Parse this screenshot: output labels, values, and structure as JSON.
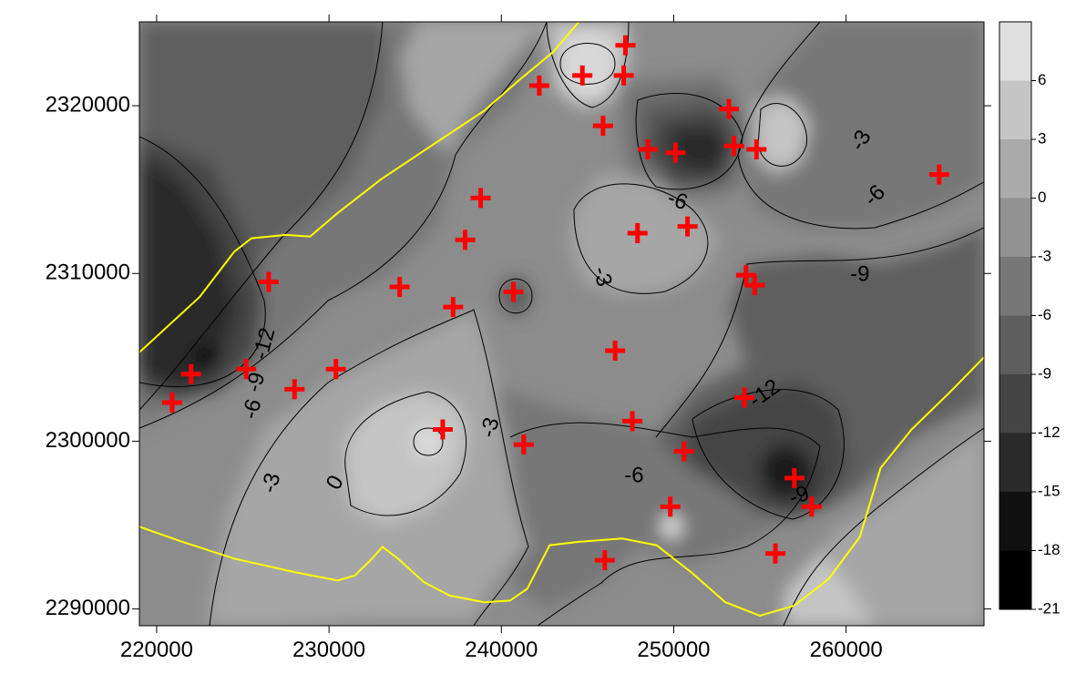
{
  "chart_data": {
    "type": "contour",
    "title": "",
    "xlabel": "",
    "ylabel": "",
    "xlim": [
      219000,
      268000
    ],
    "ylim": [
      2289000,
      2325000
    ],
    "x_ticks": [
      220000,
      230000,
      240000,
      250000,
      260000
    ],
    "y_ticks": [
      2290000,
      2300000,
      2310000,
      2320000
    ],
    "x_tick_labels": [
      "220000",
      "230000",
      "240000",
      "250000",
      "260000"
    ],
    "y_tick_labels": [
      "2290000",
      "2300000",
      "2310000",
      "2320000"
    ],
    "colorbar": {
      "levels": [
        -21,
        -18,
        -15,
        -12,
        -9,
        -6,
        -3,
        0,
        3,
        6,
        9
      ],
      "labels": [
        "-21",
        "-18",
        "-15",
        "-12",
        "-9",
        "-6",
        "-3",
        "0",
        "3",
        "6"
      ],
      "colors": [
        "#000000",
        "#101010",
        "#2a2a2a",
        "#444444",
        "#5e5e5e",
        "#777777",
        "#929292",
        "#aaaaaa",
        "#c5c5c5",
        "#e0e0e0",
        "#ffffff"
      ]
    },
    "contour_labels": [
      {
        "text": "-12",
        "x": 226300,
        "y": 2305800,
        "rot": -75
      },
      {
        "text": "-9",
        "x": 225800,
        "y": 2303500,
        "rot": -75
      },
      {
        "text": "-6",
        "x": 225600,
        "y": 2301900,
        "rot": -75
      },
      {
        "text": "-3",
        "x": 226700,
        "y": 2297500,
        "rot": -75
      },
      {
        "text": "0",
        "x": 230400,
        "y": 2297500,
        "rot": -60
      },
      {
        "text": "-3",
        "x": 239400,
        "y": 2300800,
        "rot": -75
      },
      {
        "text": "-3",
        "x": 245800,
        "y": 2309800,
        "rot": 75
      },
      {
        "text": "-6",
        "x": 250200,
        "y": 2314300,
        "rot": 20
      },
      {
        "text": "-3",
        "x": 260900,
        "y": 2317900,
        "rot": -60
      },
      {
        "text": "-6",
        "x": 261700,
        "y": 2314600,
        "rot": -45
      },
      {
        "text": "-9",
        "x": 260800,
        "y": 2309900,
        "rot": 0
      },
      {
        "text": "-12",
        "x": 255300,
        "y": 2302800,
        "rot": -35
      },
      {
        "text": "-6",
        "x": 247700,
        "y": 2297900,
        "rot": 0
      },
      {
        "text": "-9",
        "x": 257300,
        "y": 2296700,
        "rot": -20
      }
    ],
    "points": [
      [
        247200,
        2323600
      ],
      [
        244700,
        2321800
      ],
      [
        247100,
        2321800
      ],
      [
        242200,
        2321200
      ],
      [
        253200,
        2319800
      ],
      [
        245900,
        2318800
      ],
      [
        248500,
        2317400
      ],
      [
        250100,
        2317200
      ],
      [
        253500,
        2317600
      ],
      [
        254800,
        2317400
      ],
      [
        265400,
        2315900
      ],
      [
        238800,
        2314500
      ],
      [
        247900,
        2312400
      ],
      [
        250800,
        2312800
      ],
      [
        237900,
        2312000
      ],
      [
        226500,
        2309500
      ],
      [
        234100,
        2309200
      ],
      [
        254200,
        2309900
      ],
      [
        254700,
        2309300
      ],
      [
        240700,
        2308900
      ],
      [
        237200,
        2308000
      ],
      [
        246600,
        2305400
      ],
      [
        222000,
        2304000
      ],
      [
        225200,
        2304300
      ],
      [
        230400,
        2304300
      ],
      [
        228000,
        2303100
      ],
      [
        254100,
        2302600
      ],
      [
        220900,
        2302300
      ],
      [
        247600,
        2301200
      ],
      [
        236600,
        2300700
      ],
      [
        241300,
        2299800
      ],
      [
        250600,
        2299400
      ],
      [
        257000,
        2297800
      ],
      [
        249800,
        2296100
      ],
      [
        258000,
        2296100
      ],
      [
        255900,
        2293300
      ],
      [
        246000,
        2292900
      ]
    ],
    "boundary_lines": [
      {
        "name": "",
        "color": "#ffff00",
        "points": [
          [
            219000,
            2305300
          ],
          [
            222500,
            2308600
          ],
          [
            224500,
            2311300
          ],
          [
            225500,
            2312100
          ],
          [
            227500,
            2312300
          ],
          [
            228900,
            2312200
          ],
          [
            230500,
            2313600
          ],
          [
            233000,
            2315600
          ],
          [
            236500,
            2318000
          ],
          [
            239000,
            2319700
          ],
          [
            241000,
            2321500
          ],
          [
            243000,
            2323200
          ],
          [
            244500,
            2325000
          ]
        ]
      },
      {
        "name": "",
        "color": "#ffff00",
        "points": [
          [
            219000,
            2294900
          ],
          [
            221500,
            2294000
          ],
          [
            224500,
            2293000
          ],
          [
            228000,
            2292200
          ],
          [
            230500,
            2291700
          ],
          [
            231500,
            2292000
          ],
          [
            232500,
            2293000
          ],
          [
            233100,
            2293700
          ],
          [
            234000,
            2293000
          ],
          [
            235500,
            2291600
          ],
          [
            237000,
            2290800
          ],
          [
            239000,
            2290400
          ],
          [
            240500,
            2290500
          ],
          [
            241500,
            2291200
          ],
          [
            242800,
            2293800
          ],
          [
            244500,
            2294000
          ],
          [
            247000,
            2294200
          ],
          [
            249000,
            2293800
          ],
          [
            251000,
            2292200
          ],
          [
            253000,
            2290400
          ],
          [
            255000,
            2289600
          ],
          [
            257000,
            2290200
          ],
          [
            259000,
            2291800
          ],
          [
            260800,
            2294300
          ],
          [
            262000,
            2298400
          ],
          [
            263800,
            2300700
          ],
          [
            266000,
            2302900
          ],
          [
            268000,
            2305000
          ]
        ]
      }
    ],
    "grid": false,
    "legend": "colorbar-right"
  }
}
